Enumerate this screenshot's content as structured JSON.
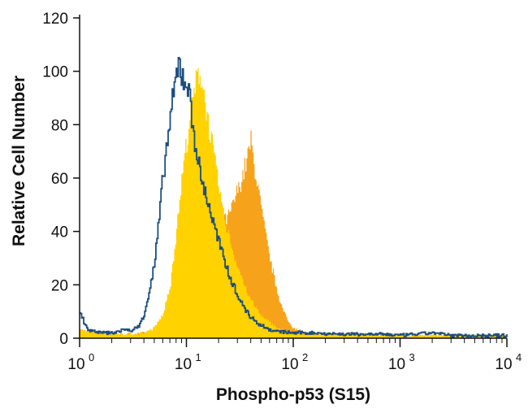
{
  "chart_data": {
    "type": "area",
    "title": "",
    "xlabel": "Phospho-p53 (S15)",
    "ylabel": "Relative Cell Number",
    "x_scale": "log",
    "xlim": [
      1,
      10000
    ],
    "ylim": [
      0,
      120
    ],
    "y_ticks": [
      0,
      20,
      40,
      60,
      80,
      100,
      120
    ],
    "y_tick_labels": [
      "0",
      "20",
      "40",
      "60",
      "80",
      "100",
      "120"
    ],
    "x_ticks": [
      1,
      10,
      100,
      1000,
      10000
    ],
    "x_tick_labels": [
      {
        "base": "10",
        "exp": "0"
      },
      {
        "base": "10",
        "exp": "1"
      },
      {
        "base": "10",
        "exp": "2"
      },
      {
        "base": "10",
        "exp": "3"
      },
      {
        "base": "10",
        "exp": "4"
      }
    ],
    "grid": false,
    "legend": "none",
    "series": [
      {
        "name": "orange-histogram",
        "style": "filled",
        "color": "#F7A21B",
        "points": [
          [
            1,
            3
          ],
          [
            1.5,
            2
          ],
          [
            2,
            1.5
          ],
          [
            3,
            1.5
          ],
          [
            4,
            2
          ],
          [
            5,
            3
          ],
          [
            6,
            7
          ],
          [
            7,
            14
          ],
          [
            8,
            28
          ],
          [
            9,
            48
          ],
          [
            10,
            68
          ],
          [
            11,
            80
          ],
          [
            12,
            86
          ],
          [
            13,
            90
          ],
          [
            14,
            87
          ],
          [
            15,
            80
          ],
          [
            17,
            68
          ],
          [
            19,
            56
          ],
          [
            21,
            48
          ],
          [
            23,
            44
          ],
          [
            25,
            46
          ],
          [
            28,
            52
          ],
          [
            31,
            57
          ],
          [
            34,
            62
          ],
          [
            37,
            68
          ],
          [
            40,
            74
          ],
          [
            42,
            66
          ],
          [
            45,
            60
          ],
          [
            50,
            48
          ],
          [
            55,
            38
          ],
          [
            60,
            30
          ],
          [
            70,
            18
          ],
          [
            80,
            10
          ],
          [
            90,
            6
          ],
          [
            100,
            4
          ],
          [
            130,
            2
          ],
          [
            200,
            1.5
          ],
          [
            400,
            1.5
          ],
          [
            1000,
            1
          ],
          [
            3000,
            1
          ],
          [
            10000,
            1
          ]
        ]
      },
      {
        "name": "yellow-histogram",
        "style": "filled",
        "color": "#FFD200",
        "points": [
          [
            1,
            3
          ],
          [
            1.5,
            2
          ],
          [
            2,
            1.5
          ],
          [
            3,
            1.5
          ],
          [
            4,
            2
          ],
          [
            5,
            4
          ],
          [
            6,
            9
          ],
          [
            7,
            20
          ],
          [
            8,
            40
          ],
          [
            9,
            60
          ],
          [
            10,
            74
          ],
          [
            11,
            86
          ],
          [
            12,
            94
          ],
          [
            13,
            100
          ],
          [
            14,
            96
          ],
          [
            15,
            88
          ],
          [
            16,
            80
          ],
          [
            18,
            68
          ],
          [
            20,
            56
          ],
          [
            22,
            46
          ],
          [
            25,
            38
          ],
          [
            28,
            30
          ],
          [
            32,
            24
          ],
          [
            36,
            18
          ],
          [
            40,
            14
          ],
          [
            45,
            11
          ],
          [
            50,
            8
          ],
          [
            60,
            6
          ],
          [
            70,
            4
          ],
          [
            80,
            3
          ],
          [
            100,
            2
          ],
          [
            150,
            1.5
          ],
          [
            300,
            1.5
          ],
          [
            1000,
            1
          ],
          [
            3000,
            1
          ],
          [
            10000,
            1
          ]
        ]
      },
      {
        "name": "blue-outline-histogram",
        "style": "outline",
        "color": "#1D4E7F",
        "points": [
          [
            1,
            10
          ],
          [
            1.1,
            6
          ],
          [
            1.2,
            3
          ],
          [
            1.5,
            2
          ],
          [
            2,
            2
          ],
          [
            2.5,
            3
          ],
          [
            3,
            3
          ],
          [
            3.5,
            4
          ],
          [
            4,
            9
          ],
          [
            4.5,
            18
          ],
          [
            5,
            28
          ],
          [
            5.5,
            44
          ],
          [
            6,
            60
          ],
          [
            6.5,
            72
          ],
          [
            7,
            82
          ],
          [
            7.5,
            90
          ],
          [
            8,
            98
          ],
          [
            8.5,
            103
          ],
          [
            9,
            99
          ],
          [
            9.5,
            97
          ],
          [
            10,
            96
          ],
          [
            10.5,
            92
          ],
          [
            11,
            84
          ],
          [
            12,
            74
          ],
          [
            13,
            64
          ],
          [
            14,
            58
          ],
          [
            15,
            54
          ],
          [
            16,
            50
          ],
          [
            17,
            46
          ],
          [
            18,
            42
          ],
          [
            20,
            36
          ],
          [
            22,
            30
          ],
          [
            24,
            26
          ],
          [
            26,
            22
          ],
          [
            28,
            19
          ],
          [
            30,
            16
          ],
          [
            33,
            13
          ],
          [
            36,
            10
          ],
          [
            40,
            8
          ],
          [
            45,
            6
          ],
          [
            50,
            5
          ],
          [
            60,
            3
          ],
          [
            70,
            2.5
          ],
          [
            100,
            2
          ],
          [
            150,
            2
          ],
          [
            300,
            1.5
          ],
          [
            700,
            1.5
          ],
          [
            1000,
            1
          ],
          [
            2000,
            2
          ],
          [
            3000,
            1
          ],
          [
            10000,
            1
          ]
        ]
      }
    ]
  }
}
